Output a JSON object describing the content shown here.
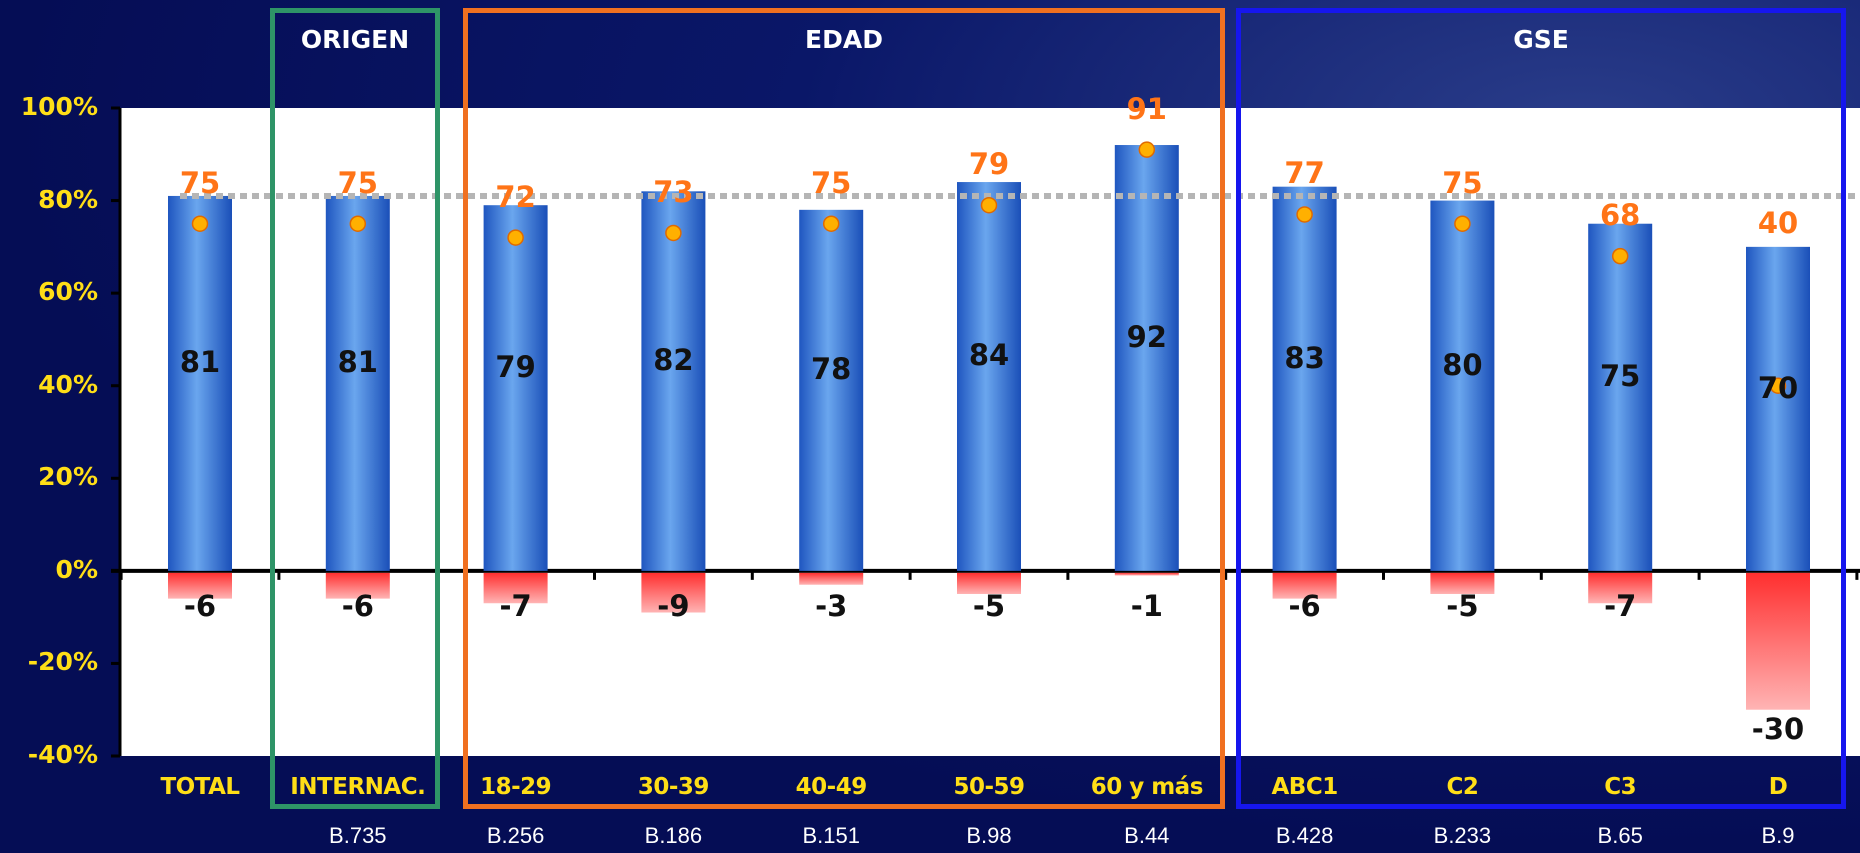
{
  "groups": [
    {
      "label": "ORIGEN",
      "color": "#2e9467"
    },
    {
      "label": "EDAD",
      "color": "#f07020"
    },
    {
      "label": "GSE",
      "color": "#1616ee"
    }
  ],
  "colors": {
    "positive_bar": "#2f6fd3",
    "negative_bar": "#ff4a4a",
    "dot": "#ffb000",
    "dot_label": "#ff7417",
    "reference_line": "#b5b5b5",
    "axis_text": "#ffde17",
    "background": "#06105a"
  },
  "chart_data": {
    "type": "bar",
    "categories": [
      "TOTAL",
      "INTERNAC.",
      "18-29",
      "30-39",
      "40-49",
      "50-59",
      "60 y más",
      "ABC1",
      "C2",
      "C3",
      "D"
    ],
    "bases": [
      "",
      "B.735",
      "B.256",
      "B.186",
      "B.151",
      "B.98",
      "B.44",
      "B.428",
      "B.233",
      "B.65",
      "B.9"
    ],
    "series": [
      {
        "values": [
          81,
          81,
          79,
          82,
          78,
          84,
          92,
          83,
          80,
          75,
          70
        ]
      },
      {
        "values": [
          -6,
          -6,
          -7,
          -9,
          -3,
          -5,
          -1,
          -6,
          -5,
          -7,
          -30
        ]
      },
      {
        "values": [
          75,
          75,
          72,
          73,
          75,
          79,
          91,
          77,
          75,
          68,
          40
        ]
      }
    ],
    "reference_line": 81,
    "ylim": [
      -40,
      100
    ],
    "yticks": [
      "100%",
      "80%",
      "60%",
      "40%",
      "20%",
      "0%",
      "-20%",
      "-40%"
    ],
    "stacked": false
  }
}
